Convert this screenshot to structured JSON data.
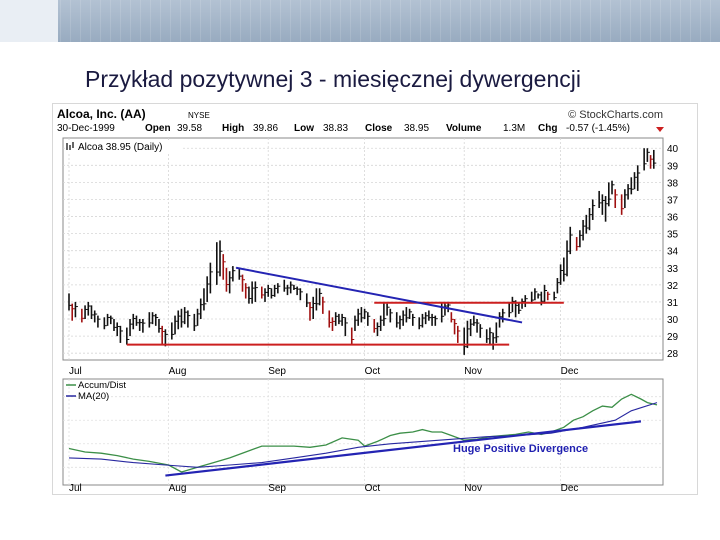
{
  "slide": {
    "title": "Przykład pozytywnej  3 - miesięcznej dywergencji"
  },
  "chart_data": [
    {
      "type": "candlestick",
      "title": "Alcoa, Inc. (AA)",
      "exchange": "NYSE",
      "source": "© StockCharts.com",
      "quote": {
        "date": "30-Dec-1999",
        "open_label": "Open",
        "open": "39.58",
        "high_label": "High",
        "high": "39.86",
        "low_label": "Low",
        "low": "38.83",
        "close_label": "Close",
        "close": "38.95",
        "volume_label": "Volume",
        "volume": "1.3M",
        "chg_label": "Chg",
        "chg": "-0.57 (-1.45%)"
      },
      "legend": "Alcoa 38.95 (Daily)",
      "ylim": [
        27.6,
        40.6
      ],
      "yticks": [
        28,
        29,
        30,
        31,
        32,
        33,
        34,
        35,
        36,
        37,
        38,
        39,
        40
      ],
      "xticks": [
        "Jul",
        "Aug",
        "Sep",
        "Oct",
        "Nov",
        "Dec"
      ],
      "xtick_days": [
        0,
        31,
        62,
        92,
        123,
        153
      ],
      "x_range_days": [
        0,
        183
      ],
      "prices": [
        [
          0,
          30.5,
          31.5
        ],
        [
          1,
          29.9,
          30.9
        ],
        [
          2,
          30.1,
          31.0
        ],
        [
          4,
          29.8,
          30.6
        ],
        [
          5,
          30.0,
          30.8
        ],
        [
          6,
          30.2,
          31.0
        ],
        [
          7,
          30.0,
          30.8
        ],
        [
          8,
          29.8,
          30.5
        ],
        [
          9,
          29.5,
          30.2
        ],
        [
          11,
          29.4,
          30.1
        ],
        [
          12,
          29.6,
          30.3
        ],
        [
          13,
          29.7,
          30.2
        ],
        [
          14,
          29.3,
          30.0
        ],
        [
          15,
          29.0,
          29.8
        ],
        [
          16,
          28.6,
          29.6
        ],
        [
          18,
          28.5,
          29.5
        ],
        [
          19,
          29.0,
          30.0
        ],
        [
          20,
          29.4,
          30.3
        ],
        [
          21,
          29.6,
          30.2
        ],
        [
          22,
          29.3,
          30.0
        ],
        [
          23,
          29.2,
          30.0
        ],
        [
          25,
          29.5,
          30.4
        ],
        [
          26,
          29.7,
          30.4
        ],
        [
          27,
          29.6,
          30.3
        ],
        [
          28,
          29.2,
          30.0
        ],
        [
          29,
          28.5,
          29.6
        ],
        [
          30,
          28.4,
          29.4
        ],
        [
          32,
          28.8,
          29.8
        ],
        [
          33,
          29.1,
          30.2
        ],
        [
          34,
          29.4,
          30.5
        ],
        [
          35,
          29.5,
          30.6
        ],
        [
          36,
          29.7,
          30.7
        ],
        [
          37,
          29.5,
          30.5
        ],
        [
          39,
          29.3,
          30.3
        ],
        [
          40,
          29.6,
          30.6
        ],
        [
          41,
          30.0,
          31.2
        ],
        [
          42,
          30.5,
          31.8
        ],
        [
          43,
          31.0,
          32.5
        ],
        [
          44,
          31.5,
          33.3
        ],
        [
          46,
          32.0,
          34.5
        ],
        [
          47,
          32.5,
          34.6
        ],
        [
          48,
          32.3,
          33.8
        ],
        [
          49,
          31.6,
          33.0
        ],
        [
          50,
          31.5,
          32.8
        ],
        [
          51,
          32.2,
          33.1
        ],
        [
          53,
          32.3,
          33.0
        ],
        [
          54,
          31.6,
          32.6
        ],
        [
          55,
          31.2,
          32.1
        ],
        [
          56,
          30.9,
          31.9
        ],
        [
          57,
          30.9,
          32.2
        ],
        [
          58,
          31.0,
          32.2
        ],
        [
          60,
          31.2,
          31.9
        ],
        [
          61,
          31.0,
          31.8
        ],
        [
          62,
          31.3,
          32.0
        ],
        [
          63,
          31.2,
          31.8
        ],
        [
          64,
          31.3,
          32.0
        ],
        [
          65,
          31.5,
          32.1
        ],
        [
          67,
          31.6,
          32.3
        ],
        [
          68,
          31.4,
          32.0
        ],
        [
          69,
          31.5,
          32.2
        ],
        [
          70,
          31.7,
          32.0
        ],
        [
          71,
          31.4,
          31.9
        ],
        [
          72,
          31.1,
          31.8
        ],
        [
          74,
          30.7,
          31.5
        ],
        [
          75,
          29.9,
          31.0
        ],
        [
          76,
          30.0,
          31.3
        ],
        [
          77,
          30.5,
          31.8
        ],
        [
          78,
          30.8,
          31.8
        ],
        [
          79,
          30.3,
          31.3
        ],
        [
          81,
          29.5,
          30.5
        ],
        [
          82,
          29.3,
          30.1
        ],
        [
          83,
          29.6,
          30.4
        ],
        [
          84,
          29.7,
          30.3
        ],
        [
          85,
          29.6,
          30.3
        ],
        [
          86,
          29.0,
          30.1
        ],
        [
          88,
          28.5,
          29.5
        ],
        [
          89,
          29.3,
          30.2
        ],
        [
          90,
          29.6,
          30.6
        ],
        [
          91,
          29.8,
          30.7
        ],
        [
          92,
          30.0,
          30.6
        ],
        [
          93,
          29.6,
          30.4
        ],
        [
          95,
          29.2,
          30.0
        ],
        [
          96,
          29.0,
          29.8
        ],
        [
          97,
          29.3,
          30.2
        ],
        [
          98,
          29.6,
          31.0
        ],
        [
          99,
          30.2,
          30.9
        ],
        [
          100,
          29.8,
          30.6
        ],
        [
          102,
          29.5,
          30.4
        ],
        [
          103,
          29.4,
          30.2
        ],
        [
          104,
          29.6,
          30.5
        ],
        [
          105,
          29.8,
          30.7
        ],
        [
          106,
          30.0,
          30.6
        ],
        [
          107,
          29.6,
          30.3
        ],
        [
          109,
          29.4,
          30.1
        ],
        [
          110,
          29.5,
          30.3
        ],
        [
          111,
          29.7,
          30.4
        ],
        [
          112,
          29.9,
          30.5
        ],
        [
          113,
          29.6,
          30.3
        ],
        [
          114,
          29.6,
          30.2
        ],
        [
          116,
          29.8,
          31.0
        ],
        [
          117,
          30.2,
          31.0
        ],
        [
          118,
          30.4,
          31.0
        ],
        [
          119,
          29.8,
          30.4
        ],
        [
          120,
          29.1,
          30.0
        ],
        [
          121,
          28.6,
          29.6
        ],
        [
          123,
          27.9,
          29.5
        ],
        [
          124,
          28.3,
          29.9
        ],
        [
          125,
          29.0,
          30.0
        ],
        [
          126,
          29.6,
          30.2
        ],
        [
          127,
          29.2,
          30.0
        ],
        [
          128,
          28.9,
          29.7
        ],
        [
          130,
          28.6,
          29.4
        ],
        [
          131,
          28.5,
          29.5
        ],
        [
          132,
          28.2,
          29.2
        ],
        [
          133,
          28.6,
          29.8
        ],
        [
          134,
          29.5,
          30.4
        ],
        [
          135,
          29.8,
          30.6
        ],
        [
          137,
          30.1,
          31.0
        ],
        [
          138,
          30.4,
          31.3
        ],
        [
          139,
          30.1,
          31.1
        ],
        [
          140,
          30.3,
          31.0
        ],
        [
          141,
          30.6,
          31.2
        ],
        [
          142,
          30.7,
          31.4
        ],
        [
          144,
          30.9,
          31.6
        ],
        [
          145,
          31.1,
          31.8
        ],
        [
          146,
          31.2,
          31.5
        ],
        [
          147,
          30.8,
          31.6
        ],
        [
          148,
          30.9,
          32.0
        ],
        [
          149,
          31.1,
          31.6
        ],
        [
          151,
          31.1,
          31.6
        ],
        [
          152,
          31.5,
          32.4
        ],
        [
          153,
          32.0,
          33.2
        ],
        [
          154,
          32.2,
          33.6
        ],
        [
          155,
          32.5,
          34.6
        ],
        [
          156,
          33.8,
          35.4
        ],
        [
          158,
          34.0,
          34.8
        ],
        [
          159,
          34.2,
          35.2
        ],
        [
          160,
          34.6,
          35.8
        ],
        [
          161,
          35.0,
          36.1
        ],
        [
          162,
          35.2,
          36.5
        ],
        [
          163,
          35.8,
          37.0
        ],
        [
          165,
          36.5,
          37.5
        ],
        [
          166,
          36.1,
          37.3
        ],
        [
          167,
          35.7,
          37.2
        ],
        [
          168,
          36.6,
          38.0
        ],
        [
          169,
          37.3,
          38.1
        ],
        [
          170,
          36.5,
          37.6
        ],
        [
          172,
          36.1,
          37.3
        ],
        [
          173,
          36.5,
          37.6
        ],
        [
          174,
          37.0,
          37.9
        ],
        [
          175,
          37.3,
          38.3
        ],
        [
          176,
          37.6,
          38.6
        ],
        [
          177,
          37.5,
          39.0
        ],
        [
          179,
          38.7,
          40.0
        ],
        [
          180,
          39.2,
          40.0
        ],
        [
          181,
          38.8,
          39.6
        ],
        [
          182,
          38.8,
          39.9
        ]
      ],
      "trendlines": [
        {
          "color": "#cc1f1f",
          "points": [
            [
              18,
              28.5
            ],
            [
              137,
              28.5
            ]
          ]
        },
        {
          "color": "#cc1f1f",
          "points": [
            [
              95,
              30.95
            ],
            [
              154,
              30.95
            ]
          ]
        },
        {
          "color": "#2424b3",
          "points": [
            [
              52,
              33.0
            ],
            [
              141,
              29.8
            ]
          ]
        }
      ]
    },
    {
      "type": "line",
      "series": [
        {
          "name": "Accum/Dist",
          "color": "#3c8f48",
          "values": [
            [
              0,
              36
            ],
            [
              5,
              33
            ],
            [
              10,
              32
            ],
            [
              15,
              30
            ],
            [
              20,
              27
            ],
            [
              25,
              25
            ],
            [
              31,
              22
            ],
            [
              35,
              16
            ],
            [
              40,
              20
            ],
            [
              45,
              24
            ],
            [
              50,
              28
            ],
            [
              55,
              33
            ],
            [
              60,
              38
            ],
            [
              65,
              38
            ],
            [
              70,
              38
            ],
            [
              75,
              37
            ],
            [
              80,
              39
            ],
            [
              85,
              45
            ],
            [
              90,
              43
            ],
            [
              92,
              38
            ],
            [
              96,
              42
            ],
            [
              100,
              47
            ],
            [
              103,
              49
            ],
            [
              107,
              50
            ],
            [
              110,
              52
            ],
            [
              113,
              50
            ],
            [
              116,
              50
            ],
            [
              119,
              47
            ],
            [
              123,
              43
            ],
            [
              127,
              44
            ],
            [
              131,
              46
            ],
            [
              135,
              47
            ],
            [
              139,
              48
            ],
            [
              143,
              50
            ],
            [
              147,
              48
            ],
            [
              150,
              50
            ],
            [
              154,
              54
            ],
            [
              157,
              60
            ],
            [
              160,
              63
            ],
            [
              163,
              68
            ],
            [
              166,
              72
            ],
            [
              169,
              71
            ],
            [
              172,
              78
            ],
            [
              175,
              82
            ],
            [
              178,
              78
            ],
            [
              180,
              75
            ],
            [
              183,
              73
            ]
          ]
        },
        {
          "name": "MA(20)",
          "color": "#2828a0",
          "values": [
            [
              0,
              28
            ],
            [
              10,
              27
            ],
            [
              20,
              24
            ],
            [
              30,
              22
            ],
            [
              40,
              20
            ],
            [
              50,
              22
            ],
            [
              60,
              24
            ],
            [
              70,
              28
            ],
            [
              80,
              32
            ],
            [
              90,
              37
            ],
            [
              100,
              40
            ],
            [
              110,
              42
            ],
            [
              120,
              44
            ],
            [
              130,
              46
            ],
            [
              140,
              47
            ],
            [
              150,
              49
            ],
            [
              160,
              54
            ],
            [
              170,
              60
            ],
            [
              175,
              68
            ],
            [
              183,
              75
            ]
          ]
        }
      ],
      "trendlines": [
        {
          "color": "#2424b3",
          "points": [
            [
              30,
              13
            ],
            [
              178,
              59
            ]
          ]
        }
      ],
      "annotation": "Huge Positive Divergence",
      "ylim": [
        5,
        95
      ],
      "xticks": [
        "Jul",
        "Aug",
        "Sep",
        "Oct",
        "Nov",
        "Dec"
      ],
      "xtick_days": [
        0,
        31,
        62,
        92,
        123,
        153
      ]
    }
  ]
}
